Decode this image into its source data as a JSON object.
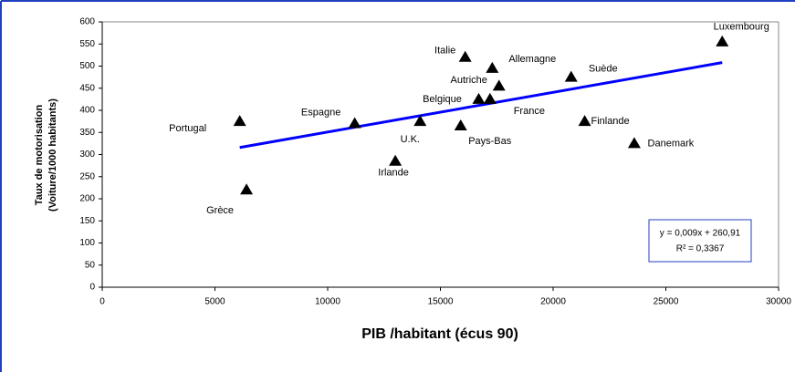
{
  "chart_data": {
    "type": "scatter",
    "x_label": "PIB /habitant (écus 90)",
    "y_label": [
      "Taux de motorisation",
      "(Voiture/1000 habitants)"
    ],
    "labels": [
      "Portugal",
      "Grèce",
      "Espagne",
      "U.K.",
      "Irlande",
      "Italie",
      "Allemagne",
      "Autriche",
      "Belgique",
      "France",
      "Pays-Bas",
      "Suède",
      "Finlande",
      "Danemark",
      "Luxembourg"
    ],
    "x": [
      6100,
      6400,
      11200,
      14100,
      13000,
      16100,
      17300,
      17600,
      16700,
      17200,
      15900,
      20800,
      21400,
      23600,
      27500
    ],
    "y": [
      375,
      220,
      370,
      375,
      285,
      520,
      495,
      455,
      425,
      425,
      365,
      475,
      375,
      325,
      555
    ],
    "color": "#000000",
    "trendline": {
      "x": [
        6100,
        27500
      ],
      "y": [
        316,
        508
      ],
      "color": "#0000ff",
      "equation": "y = 0,009x + 260,91",
      "r2": "R² = 0,3367"
    },
    "xlim": [
      0,
      30000
    ],
    "xticks": [
      0,
      5000,
      10000,
      15000,
      20000,
      25000,
      30000
    ],
    "ylim": [
      0,
      600
    ],
    "yticks": [
      0,
      50,
      100,
      150,
      200,
      250,
      300,
      350,
      400,
      450,
      500,
      550,
      600
    ]
  }
}
